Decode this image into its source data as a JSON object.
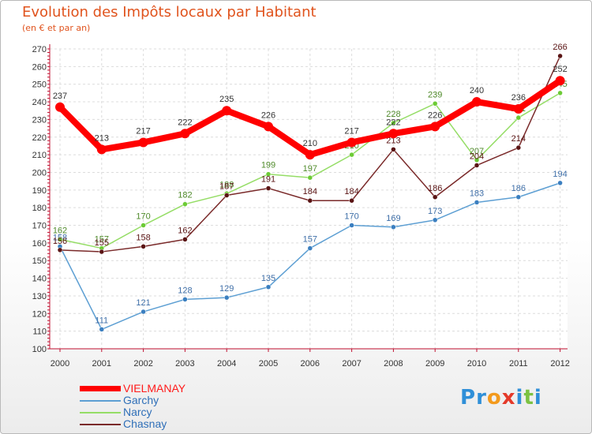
{
  "title": "Evolution des Impôts locaux par Habitant",
  "subtitle": "(en € et par an)",
  "logo": {
    "letters": [
      "P",
      "r",
      "o",
      "x",
      "i",
      "t",
      "i"
    ],
    "colors": [
      "#2f8fd8",
      "#2f8fd8",
      "#f39a1d",
      "#e43a2a",
      "#2f8fd8",
      "#7cc242",
      "#2f8fd8"
    ]
  },
  "chart_data": {
    "type": "line",
    "title": "Evolution des Impôts locaux par Habitant",
    "subtitle": "(en € et par an)",
    "xlabel": "",
    "ylabel": "",
    "ylim": [
      100,
      270
    ],
    "yticks": [
      100,
      110,
      120,
      130,
      140,
      150,
      160,
      170,
      180,
      190,
      200,
      210,
      220,
      230,
      240,
      250,
      260,
      270
    ],
    "grid": true,
    "legend_position": "bottom-left",
    "categories": [
      "2000",
      "2001",
      "2002",
      "2003",
      "2004",
      "2005",
      "2006",
      "2007",
      "2008",
      "2009",
      "2010",
      "2011",
      "2012"
    ],
    "series": [
      {
        "name": "Garchy",
        "color": "#5d9fd3",
        "marker": "#3b7fc0",
        "text_color": "#3f6fa8",
        "values": [
          158,
          111,
          121,
          128,
          129,
          135,
          157,
          170,
          169,
          173,
          183,
          186,
          194
        ]
      },
      {
        "name": "Narcy",
        "color": "#95dd66",
        "marker": "#6ccb35",
        "text_color": "#4f8a2a",
        "values": [
          162,
          157,
          170,
          182,
          188,
          199,
          197,
          210,
          228,
          239,
          207,
          231,
          245
        ]
      },
      {
        "name": "Chasnay",
        "color": "#7a2a2a",
        "marker": "#5a1414",
        "text_color": "#5a1414",
        "values": [
          156,
          155,
          158,
          162,
          187,
          191,
          184,
          184,
          213,
          186,
          204,
          214,
          266
        ]
      },
      {
        "name": "VIELMANAY",
        "color": "#ff0000",
        "marker": "#ff0000",
        "text_color": "#333333",
        "values": [
          237,
          213,
          217,
          222,
          235,
          226,
          210,
          217,
          222,
          226,
          240,
          236,
          252
        ]
      }
    ],
    "legend": [
      {
        "name": "VIELMANAY",
        "color": "#ff0000",
        "text_color": "#ff1a1a"
      },
      {
        "name": "Garchy",
        "color": "#5d9fd3",
        "text_color": "#2f6fb8"
      },
      {
        "name": "Narcy",
        "color": "#95dd66",
        "text_color": "#2f6fb8"
      },
      {
        "name": "Chasnay",
        "color": "#7a2a2a",
        "text_color": "#2f6fb8"
      }
    ]
  }
}
